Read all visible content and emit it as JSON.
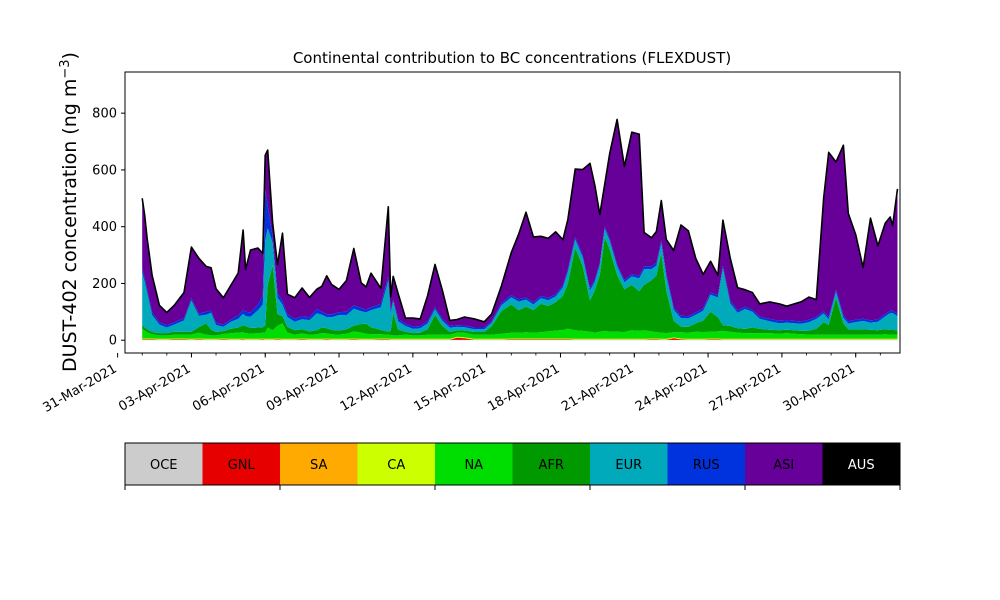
{
  "chart_data": {
    "type": "area",
    "stacked": true,
    "title": "Continental contribution to BC concentrations (FLEXDUST)",
    "ylabel": "DUST-402 concentration (ng m⁻³)",
    "ylabel_main": "DUST-402 concentration (ng m",
    "ylabel_sup": "−3",
    "ylabel_tail": ")",
    "xlabel": "",
    "x_unit": "day of April 2021 (fractional)",
    "xlim": [
      -0.7,
      30.8
    ],
    "ylim": [
      -45,
      945
    ],
    "grid": false,
    "yticks": [
      0,
      200,
      400,
      600,
      800
    ],
    "xticks": [
      {
        "x": -1,
        "label": "31-Mar-2021"
      },
      {
        "x": 2,
        "label": "03-Apr-2021"
      },
      {
        "x": 5,
        "label": "06-Apr-2021"
      },
      {
        "x": 8,
        "label": "09-Apr-2021"
      },
      {
        "x": 11,
        "label": "12-Apr-2021"
      },
      {
        "x": 14,
        "label": "15-Apr-2021"
      },
      {
        "x": 17,
        "label": "18-Apr-2021"
      },
      {
        "x": 20,
        "label": "21-Apr-2021"
      },
      {
        "x": 23,
        "label": "24-Apr-2021"
      },
      {
        "x": 26,
        "label": "27-Apr-2021"
      },
      {
        "x": 29,
        "label": "30-Apr-2021"
      }
    ],
    "x": [
      0.0,
      0.1,
      0.2,
      0.4,
      0.7,
      1.0,
      1.3,
      1.7,
      2.0,
      2.3,
      2.6,
      2.8,
      3.0,
      3.3,
      3.6,
      3.9,
      4.1,
      4.2,
      4.4,
      4.7,
      4.9,
      5.0,
      5.1,
      5.3,
      5.5,
      5.7,
      5.9,
      6.2,
      6.5,
      6.8,
      7.1,
      7.3,
      7.5,
      7.7,
      8.0,
      8.3,
      8.6,
      8.9,
      9.1,
      9.3,
      9.7,
      10.0,
      10.1,
      10.2,
      10.4,
      10.7,
      11.0,
      11.3,
      11.6,
      11.9,
      12.2,
      12.5,
      12.8,
      13.1,
      13.5,
      13.9,
      14.2,
      14.6,
      15.0,
      15.3,
      15.6,
      15.9,
      16.2,
      16.5,
      16.8,
      17.1,
      17.3,
      17.6,
      17.9,
      18.2,
      18.4,
      18.6,
      18.8,
      19.0,
      19.3,
      19.6,
      19.9,
      20.2,
      20.4,
      20.7,
      20.9,
      21.1,
      21.3,
      21.6,
      21.9,
      22.2,
      22.5,
      22.8,
      23.1,
      23.4,
      23.6,
      23.9,
      24.2,
      24.5,
      24.8,
      25.1,
      25.5,
      25.9,
      26.2,
      26.5,
      26.8,
      27.1,
      27.4,
      27.7,
      27.9,
      28.2,
      28.5,
      28.7,
      29.0,
      29.3,
      29.6,
      29.9,
      30.2,
      30.4,
      30.5,
      30.7
    ],
    "series": [
      {
        "name": "OCE",
        "color": "#cccccc",
        "values": [
          1,
          1,
          1,
          1,
          1,
          1,
          1,
          1,
          1,
          1,
          1,
          1,
          1,
          1,
          1,
          1,
          1,
          1,
          1,
          1,
          1,
          1,
          1,
          1,
          1,
          1,
          1,
          1,
          1,
          1,
          1,
          1,
          1,
          1,
          1,
          1,
          1,
          1,
          1,
          1,
          1,
          1,
          1,
          1,
          1,
          1,
          1,
          1,
          1,
          1,
          1,
          1,
          1,
          1,
          1,
          1,
          1,
          1,
          1,
          1,
          1,
          1,
          1,
          1,
          1,
          1,
          1,
          1,
          1,
          1,
          1,
          1,
          1,
          1,
          1,
          1,
          1,
          1,
          1,
          1,
          1,
          1,
          1,
          1,
          1,
          1,
          1,
          1,
          1,
          1,
          1,
          1,
          1,
          1,
          1,
          1,
          1,
          1,
          1,
          1,
          1,
          1,
          1,
          1,
          1,
          1,
          1,
          1,
          1,
          1,
          1,
          1,
          1,
          1,
          1,
          1
        ]
      },
      {
        "name": "GNL",
        "color": "#e60000",
        "values": [
          2,
          2,
          2,
          2,
          1,
          1,
          2,
          2,
          1,
          2,
          1,
          1,
          1,
          2,
          1,
          1,
          2,
          1,
          1,
          1,
          2,
          1,
          1,
          1,
          2,
          1,
          1,
          1,
          2,
          1,
          1,
          1,
          2,
          1,
          1,
          1,
          2,
          1,
          1,
          1,
          2,
          2,
          1,
          1,
          1,
          1,
          1,
          1,
          1,
          1,
          1,
          1,
          8,
          6,
          1,
          1,
          1,
          1,
          2,
          2,
          2,
          2,
          2,
          2,
          2,
          2,
          2,
          1,
          1,
          1,
          1,
          1,
          1,
          1,
          1,
          1,
          1,
          1,
          1,
          2,
          2,
          1,
          1,
          6,
          2,
          1,
          1,
          1,
          2,
          2,
          1,
          1,
          1,
          1,
          1,
          1,
          1,
          1,
          1,
          1,
          1,
          1,
          1,
          1,
          1,
          1,
          1,
          1,
          1,
          1,
          1,
          1,
          1,
          1,
          1,
          1
        ]
      },
      {
        "name": "SA",
        "color": "#ffaa00",
        "values": [
          1,
          1,
          1,
          1,
          1,
          1,
          1,
          1,
          1,
          1,
          1,
          1,
          1,
          1,
          1,
          1,
          1,
          1,
          1,
          1,
          1,
          1,
          1,
          1,
          1,
          1,
          1,
          1,
          1,
          1,
          1,
          1,
          1,
          1,
          1,
          1,
          1,
          1,
          1,
          1,
          1,
          1,
          1,
          1,
          1,
          1,
          1,
          1,
          1,
          1,
          1,
          1,
          1,
          1,
          1,
          1,
          1,
          1,
          1,
          1,
          1,
          1,
          1,
          1,
          1,
          1,
          1,
          1,
          1,
          1,
          1,
          1,
          1,
          1,
          1,
          1,
          1,
          1,
          1,
          1,
          1,
          1,
          1,
          1,
          1,
          1,
          1,
          1,
          1,
          1,
          1,
          1,
          1,
          1,
          1,
          1,
          1,
          1,
          1,
          1,
          1,
          1,
          1,
          1,
          1,
          1,
          1,
          1,
          1,
          1,
          1,
          1,
          1,
          1,
          1,
          1
        ]
      },
      {
        "name": "CA",
        "color": "#ccff00",
        "values": [
          2,
          2,
          2,
          2,
          2,
          2,
          2,
          2,
          2,
          2,
          2,
          2,
          2,
          2,
          2,
          2,
          2,
          2,
          2,
          2,
          2,
          2,
          2,
          2,
          2,
          2,
          2,
          2,
          2,
          2,
          2,
          2,
          2,
          2,
          2,
          2,
          2,
          2,
          2,
          2,
          2,
          2,
          2,
          2,
          2,
          2,
          2,
          2,
          2,
          2,
          2,
          2,
          2,
          2,
          2,
          2,
          2,
          2,
          2,
          2,
          2,
          2,
          2,
          2,
          2,
          2,
          2,
          2,
          2,
          2,
          2,
          2,
          2,
          2,
          2,
          2,
          2,
          2,
          2,
          2,
          2,
          2,
          2,
          2,
          2,
          2,
          2,
          2,
          2,
          2,
          2,
          2,
          2,
          2,
          2,
          2,
          2,
          2,
          2,
          2,
          2,
          2,
          2,
          2,
          2,
          2,
          2,
          2,
          2,
          2,
          2,
          2,
          2,
          2,
          2,
          2
        ]
      },
      {
        "name": "NA",
        "color": "#00dd00",
        "values": [
          35,
          28,
          22,
          15,
          12,
          12,
          14,
          14,
          15,
          20,
          15,
          12,
          12,
          16,
          20,
          22,
          22,
          20,
          18,
          20,
          20,
          22,
          40,
          30,
          45,
          55,
          22,
          15,
          18,
          14,
          16,
          20,
          18,
          16,
          15,
          18,
          25,
          22,
          18,
          16,
          15,
          14,
          13,
          12,
          12,
          15,
          12,
          12,
          14,
          14,
          15,
          14,
          15,
          16,
          14,
          14,
          14,
          18,
          20,
          20,
          22,
          20,
          22,
          25,
          28,
          30,
          35,
          30,
          28,
          25,
          22,
          25,
          28,
          25,
          25,
          24,
          30,
          28,
          30,
          25,
          22,
          22,
          20,
          18,
          22,
          22,
          25,
          24,
          24,
          25,
          28,
          25,
          22,
          20,
          20,
          20,
          20,
          18,
          20,
          18,
          16,
          15,
          15,
          14,
          14,
          15,
          14,
          14,
          14,
          15,
          14,
          14,
          16,
          15,
          15,
          15
        ]
      },
      {
        "name": "AFR",
        "color": "#009900",
        "values": [
          12,
          12,
          10,
          8,
          8,
          8,
          10,
          10,
          10,
          20,
          40,
          20,
          12,
          10,
          15,
          18,
          25,
          25,
          20,
          20,
          20,
          25,
          150,
          230,
          40,
          25,
          20,
          15,
          15,
          12,
          14,
          20,
          18,
          15,
          14,
          15,
          20,
          30,
          35,
          25,
          15,
          10,
          15,
          80,
          20,
          10,
          8,
          10,
          20,
          70,
          30,
          10,
          8,
          8,
          10,
          10,
          30,
          80,
          100,
          80,
          90,
          80,
          100,
          90,
          100,
          120,
          160,
          290,
          230,
          110,
          150,
          200,
          330,
          290,
          200,
          150,
          160,
          140,
          160,
          180,
          200,
          280,
          150,
          40,
          20,
          20,
          30,
          40,
          70,
          50,
          20,
          20,
          15,
          15,
          20,
          15,
          12,
          12,
          12,
          12,
          12,
          14,
          20,
          45,
          35,
          130,
          40,
          20,
          20,
          18,
          18,
          16,
          18,
          16,
          16,
          15
        ]
      },
      {
        "name": "EUR",
        "color": "#00aabb",
        "values": [
          185,
          160,
          130,
          60,
          30,
          20,
          25,
          40,
          110,
          40,
          30,
          60,
          25,
          15,
          25,
          30,
          40,
          35,
          40,
          60,
          80,
          300,
          200,
          80,
          60,
          40,
          35,
          30,
          35,
          40,
          60,
          45,
          40,
          45,
          55,
          50,
          60,
          45,
          40,
          60,
          80,
          180,
          60,
          40,
          30,
          20,
          15,
          15,
          20,
          20,
          18,
          15,
          12,
          12,
          10,
          10,
          12,
          20,
          25,
          30,
          25,
          20,
          20,
          20,
          20,
          30,
          40,
          30,
          30,
          35,
          30,
          35,
          30,
          30,
          30,
          25,
          30,
          45,
          55,
          40,
          35,
          35,
          50,
          40,
          30,
          30,
          30,
          35,
          60,
          70,
          200,
          80,
          55,
          70,
          55,
          35,
          30,
          25,
          25,
          25,
          25,
          30,
          35,
          30,
          20,
          20,
          20,
          20,
          25,
          30,
          25,
          30,
          45,
          60,
          60,
          50
        ]
      },
      {
        "name": "RUS",
        "color": "#0033dd",
        "values": [
          15,
          14,
          12,
          10,
          8,
          8,
          8,
          8,
          8,
          8,
          10,
          8,
          8,
          8,
          8,
          12,
          15,
          15,
          15,
          20,
          30,
          180,
          80,
          20,
          15,
          12,
          10,
          10,
          10,
          10,
          15,
          10,
          10,
          10,
          10,
          12,
          12,
          12,
          10,
          10,
          12,
          15,
          10,
          8,
          8,
          8,
          8,
          8,
          8,
          8,
          8,
          6,
          6,
          6,
          6,
          6,
          6,
          8,
          8,
          8,
          8,
          8,
          8,
          8,
          8,
          8,
          10,
          8,
          8,
          8,
          8,
          8,
          8,
          8,
          8,
          8,
          8,
          8,
          10,
          10,
          10,
          10,
          10,
          8,
          8,
          8,
          8,
          8,
          8,
          8,
          10,
          10,
          8,
          8,
          8,
          8,
          8,
          8,
          8,
          8,
          8,
          8,
          8,
          8,
          8,
          8,
          8,
          8,
          8,
          8,
          8,
          8,
          8,
          8,
          8,
          8
        ]
      },
      {
        "name": "ASI",
        "color": "#660099",
        "values": [
          247,
          220,
          180,
          130,
          60,
          45,
          60,
          90,
          180,
          195,
          160,
          150,
          120,
          95,
          120,
          150,
          280,
          150,
          220,
          200,
          150,
          120,
          195,
          50,
          100,
          240,
          70,
          75,
          100,
          70,
          70,
          90,
          135,
          105,
          80,
          110,
          200,
          88,
          80,
          120,
          55,
          245,
          50,
          80,
          90,
          20,
          30,
          25,
          90,
          150,
          100,
          20,
          20,
          30,
          30,
          20,
          25,
          60,
          150,
          230,
          300,
          230,
          210,
          210,
          220,
          160,
          175,
          240,
          300,
          440,
          330,
          170,
          150,
          300,
          510,
          400,
          500,
          500,
          120,
          100,
          110,
          140,
          120,
          200,
          320,
          300,
          190,
          120,
          110,
          70,
          160,
          150,
          80,
          60,
          60,
          45,
          60,
          60,
          50,
          60,
          70,
          80,
          60,
          400,
          580,
          450,
          600,
          380,
          300,
          180,
          360,
          260,
          320,
          330,
          300,
          440
        ]
      },
      {
        "name": "AUS",
        "color": "#000000",
        "values": [
          0,
          0,
          0,
          0,
          0,
          0,
          0,
          0,
          0,
          0,
          0,
          0,
          0,
          0,
          0,
          0,
          0,
          0,
          0,
          0,
          0,
          0,
          0,
          0,
          0,
          0,
          0,
          0,
          0,
          0,
          0,
          0,
          0,
          0,
          0,
          0,
          0,
          0,
          0,
          0,
          0,
          0,
          0,
          0,
          0,
          0,
          0,
          0,
          0,
          0,
          0,
          0,
          0,
          0,
          0,
          0,
          0,
          0,
          0,
          0,
          0,
          0,
          0,
          0,
          0,
          0,
          0,
          0,
          0,
          0,
          0,
          0,
          0,
          0,
          0,
          0,
          0,
          0,
          0,
          0,
          0,
          0,
          0,
          0,
          0,
          0,
          0,
          0,
          0,
          0,
          0,
          0,
          0,
          0,
          0,
          0,
          0,
          0,
          0,
          0,
          0,
          0,
          0,
          0,
          0,
          0,
          0,
          0,
          0,
          0,
          0,
          0,
          0,
          0,
          0,
          0
        ]
      }
    ]
  }
}
